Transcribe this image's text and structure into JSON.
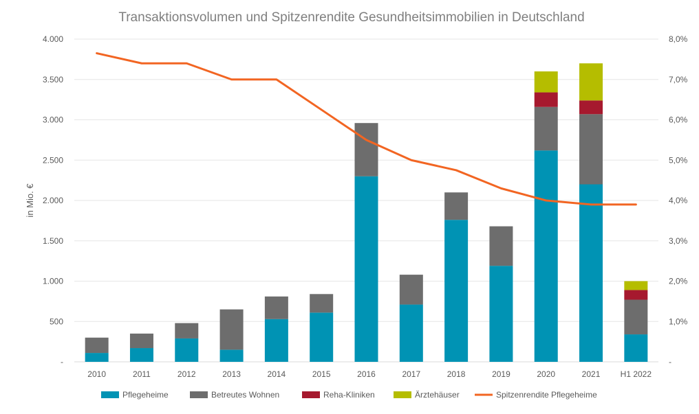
{
  "chart_data": {
    "type": "bar",
    "stacked": true,
    "title": "Transaktionsvolumen und Spitzenrendite Gesundheitsimmobilien in Deutschland",
    "categories": [
      "2010",
      "2011",
      "2012",
      "2013",
      "2014",
      "2015",
      "2016",
      "2017",
      "2018",
      "2019",
      "2020",
      "2021",
      "H1 2022"
    ],
    "ylabel": "in Mio. €",
    "ylim": [
      0,
      4000
    ],
    "y_ticks": [
      0,
      500,
      1000,
      1500,
      2000,
      2500,
      3000,
      3500,
      4000
    ],
    "y_tick_labels": [
      "-",
      "500",
      "1.000",
      "1.500",
      "2.000",
      "2.500",
      "3.000",
      "3.500",
      "4.000"
    ],
    "y2lim": [
      0,
      8
    ],
    "y2_ticks": [
      0,
      1,
      2,
      3,
      4,
      5,
      6,
      7,
      8
    ],
    "y2_tick_labels": [
      "-",
      "1,0%",
      "2,0%",
      "3,0%",
      "4,0%",
      "5,0%",
      "6,0%",
      "7,0%",
      "8,0%"
    ],
    "grid": true,
    "legend_position": "bottom",
    "series": [
      {
        "name": "Pflegeheime",
        "color": "#0093b4",
        "kind": "bar",
        "values": [
          110,
          170,
          290,
          150,
          530,
          610,
          2300,
          710,
          1760,
          1190,
          2620,
          2200,
          340
        ]
      },
      {
        "name": "Betreutes Wohnen",
        "color": "#6d6d6d",
        "kind": "bar",
        "values": [
          190,
          180,
          190,
          500,
          280,
          230,
          660,
          370,
          340,
          490,
          540,
          870,
          430
        ]
      },
      {
        "name": "Reha-Kliniken",
        "color": "#a6192e",
        "kind": "bar",
        "values": [
          0,
          0,
          0,
          0,
          0,
          0,
          0,
          0,
          0,
          0,
          180,
          170,
          120
        ]
      },
      {
        "name": "Ärztehäuser",
        "color": "#b5bd00",
        "kind": "bar",
        "values": [
          0,
          0,
          0,
          0,
          0,
          0,
          0,
          0,
          0,
          0,
          260,
          460,
          110
        ]
      },
      {
        "name": "Spitzenrendite Pflegeheime",
        "color": "#f26522",
        "kind": "line",
        "axis": "right",
        "values": [
          7.65,
          7.4,
          7.4,
          7.0,
          7.0,
          6.25,
          5.5,
          5.0,
          4.75,
          4.3,
          4.0,
          3.9,
          3.9
        ]
      }
    ]
  }
}
